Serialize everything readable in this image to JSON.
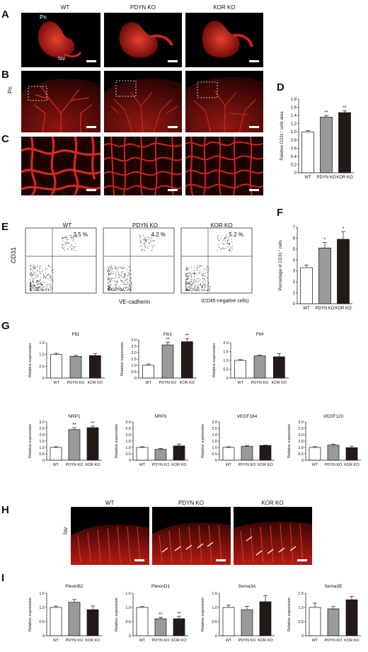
{
  "panels": {
    "A": "A",
    "B": "B",
    "C": "C",
    "D": "D",
    "E": "E",
    "F": "F",
    "G": "G",
    "H": "H",
    "I": "I"
  },
  "groups": [
    "WT",
    "PDYN KO",
    "KOR KO"
  ],
  "panel_a": {
    "pn": "Pn",
    "isv": "Isv"
  },
  "panel_b": {
    "side": "Pn"
  },
  "panel_e": {
    "pcts": [
      "3.5 %",
      "4.2 %",
      "5.2 %"
    ],
    "ylabel": "CD31",
    "xlabel": "VE-cadherin",
    "note": "(CD45-negative cells)"
  },
  "panel_h": {
    "side": "Isv"
  },
  "chart_data": [
    {
      "id": "D",
      "type": "bar",
      "categories": [
        "WT",
        "PDYN KO",
        "KOR KO"
      ],
      "values": [
        1.0,
        1.36,
        1.47
      ],
      "errors": [
        0.03,
        0.04,
        0.05
      ],
      "stars": [
        "",
        "**",
        "**"
      ],
      "ylabel": "Relative CD31⁺ cells area",
      "ylim": [
        0,
        1.8
      ],
      "yticks": [
        0,
        0.2,
        0.4,
        0.6,
        0.8,
        1.0,
        1.2,
        1.4,
        1.6,
        1.8
      ],
      "ytick_labels": [
        "0",
        "0.2",
        "0.4",
        "0.6",
        "0.8",
        "1.0",
        "1.2",
        "1.4",
        "1.6",
        "1.8"
      ],
      "title": ""
    },
    {
      "id": "F",
      "type": "bar",
      "categories": [
        "WT",
        "PDYN KO",
        "KOR KO"
      ],
      "values": [
        3.3,
        5.1,
        5.9
      ],
      "errors": [
        0.25,
        0.5,
        0.7
      ],
      "stars": [
        "",
        "*",
        "*"
      ],
      "ylabel": "Percentage of CD31⁺ cells",
      "ylim": [
        0,
        7
      ],
      "yticks": [
        0,
        1,
        2,
        3,
        4,
        5,
        6,
        7
      ],
      "ytick_labels": [
        "0",
        "1",
        "2",
        "3",
        "4",
        "5",
        "6",
        "7"
      ],
      "title": ""
    },
    {
      "id": "G1",
      "type": "bar",
      "title": "Flt1",
      "categories": [
        "WT",
        "PDYN KO",
        "KOR KO"
      ],
      "values": [
        1.0,
        0.92,
        0.95
      ],
      "errors": [
        0.05,
        0.04,
        0.08
      ],
      "stars": [
        "",
        "",
        ""
      ],
      "ylabel": "Relative expression",
      "ylim": [
        0,
        1.5
      ],
      "yticks": [
        0,
        0.5,
        1.0,
        1.5
      ],
      "ytick_labels": [
        "0",
        "0.5",
        "1.0",
        "1.5"
      ]
    },
    {
      "id": "G2",
      "type": "bar",
      "title": "Flk1",
      "categories": [
        "WT",
        "PDYN KO",
        "KOR KO"
      ],
      "values": [
        1.0,
        2.6,
        2.85
      ],
      "errors": [
        0.1,
        0.2,
        0.25
      ],
      "stars": [
        "",
        "**",
        "**"
      ],
      "ylabel": "Relative expression",
      "ylim": [
        0,
        3.0
      ],
      "yticks": [
        0,
        0.5,
        1.0,
        1.5,
        2.0,
        2.5,
        3.0
      ],
      "ytick_labels": [
        "0",
        "0.5",
        "1.0",
        "1.5",
        "2.0",
        "2.5",
        "3.0"
      ]
    },
    {
      "id": "G3",
      "type": "bar",
      "title": "Flt4",
      "categories": [
        "WT",
        "PDYN KO",
        "KOR KO"
      ],
      "values": [
        1.0,
        1.25,
        1.2
      ],
      "errors": [
        0.04,
        0.05,
        0.18
      ],
      "stars": [
        "",
        "",
        ""
      ],
      "ylabel": "Relative expression",
      "ylim": [
        0,
        2.0
      ],
      "yticks": [
        0,
        0.5,
        1.0,
        1.5,
        2.0
      ],
      "ytick_labels": [
        "0",
        "0.5",
        "1.0",
        "1.5",
        "2.0"
      ]
    },
    {
      "id": "G4",
      "type": "bar",
      "title": "NRP1",
      "categories": [
        "WT",
        "PDYN KO",
        "KOR KO"
      ],
      "values": [
        1.0,
        2.4,
        2.55
      ],
      "errors": [
        0.05,
        0.15,
        0.12
      ],
      "stars": [
        "",
        "**",
        "**"
      ],
      "ylabel": "Relative expression",
      "ylim": [
        0,
        3.0
      ],
      "yticks": [
        0,
        0.5,
        1.0,
        1.5,
        2.0,
        2.5,
        3.0
      ],
      "ytick_labels": [
        "0",
        "0.5",
        "1.0",
        "1.5",
        "2.0",
        "2.5",
        "3.0"
      ]
    },
    {
      "id": "G5",
      "type": "bar",
      "title": "NRP2",
      "categories": [
        "WT",
        "PDYN KO",
        "KOR KO"
      ],
      "values": [
        1.0,
        0.85,
        1.12
      ],
      "errors": [
        0.05,
        0.06,
        0.15
      ],
      "stars": [
        "",
        "",
        ""
      ],
      "ylabel": "Relative expression",
      "ylim": [
        0,
        3.0
      ],
      "yticks": [
        0,
        0.5,
        1.0,
        1.5,
        2.0,
        2.5,
        3.0
      ],
      "ytick_labels": [
        "0",
        "0.5",
        "1.0",
        "1.5",
        "2.0",
        "2.5",
        "3.0"
      ]
    },
    {
      "id": "G6",
      "type": "bar",
      "title": "VEGF164",
      "categories": [
        "WT",
        "PDYN KO",
        "KOR KO"
      ],
      "values": [
        1.0,
        1.08,
        1.15
      ],
      "errors": [
        0.05,
        0.07,
        0.03
      ],
      "stars": [
        "",
        "",
        ""
      ],
      "ylabel": "Relative expression",
      "ylim": [
        0,
        3.0
      ],
      "yticks": [
        0,
        0.5,
        1.0,
        1.5,
        2.0,
        2.5,
        3.0
      ],
      "ytick_labels": [
        "0",
        "0.5",
        "1.0",
        "1.5",
        "2.0",
        "2.5",
        "3.0"
      ]
    },
    {
      "id": "G7",
      "type": "bar",
      "title": "VEGF120",
      "categories": [
        "WT",
        "PDYN KO",
        "KOR KO"
      ],
      "values": [
        1.0,
        1.18,
        0.98
      ],
      "errors": [
        0.06,
        0.08,
        0.12
      ],
      "stars": [
        "",
        "",
        ""
      ],
      "ylabel": "Relative expression",
      "ylim": [
        0,
        3.0
      ],
      "yticks": [
        0,
        0.5,
        1.0,
        1.5,
        2.0,
        2.5,
        3.0
      ],
      "ytick_labels": [
        "0",
        "0.5",
        "1.0",
        "1.5",
        "2.0",
        "2.5",
        "3.0"
      ]
    },
    {
      "id": "I1",
      "type": "bar",
      "title": "PlexinB2",
      "categories": [
        "WT",
        "PDYN KO",
        "KOR KO"
      ],
      "values": [
        1.0,
        1.18,
        0.92
      ],
      "errors": [
        0.05,
        0.1,
        0.13
      ],
      "stars": [
        "",
        "",
        ""
      ],
      "ylabel": "Relative expression",
      "ylim": [
        0,
        1.5
      ],
      "yticks": [
        0,
        0.5,
        1.0,
        1.5
      ],
      "ytick_labels": [
        "0",
        "0.5",
        "1.0",
        "1.5"
      ]
    },
    {
      "id": "I2",
      "type": "bar",
      "title": "PlexinD1",
      "categories": [
        "WT",
        "PDYN KO",
        "KOR KO"
      ],
      "values": [
        1.0,
        0.6,
        0.6
      ],
      "errors": [
        0.03,
        0.05,
        0.08
      ],
      "stars": [
        "",
        "**",
        "**"
      ],
      "ylabel": "Relative expression",
      "ylim": [
        0,
        1.5
      ],
      "yticks": [
        0,
        0.5,
        1.0,
        1.5
      ],
      "ytick_labels": [
        "0",
        "0.5",
        "1.0",
        "1.5"
      ]
    },
    {
      "id": "I3",
      "type": "bar",
      "title": "Sema3A",
      "categories": [
        "WT",
        "PDYN KO",
        "KOR KO"
      ],
      "values": [
        1.0,
        0.92,
        1.2
      ],
      "errors": [
        0.08,
        0.12,
        0.22
      ],
      "stars": [
        "",
        "",
        ""
      ],
      "ylabel": "Relative expression",
      "ylim": [
        0,
        1.5
      ],
      "yticks": [
        0,
        0.5,
        1.0,
        1.5
      ],
      "ytick_labels": [
        "0",
        "0.5",
        "1.0",
        "1.5"
      ]
    },
    {
      "id": "I4",
      "type": "bar",
      "title": "Sema3E",
      "categories": [
        "WT",
        "PDYN KO",
        "KOR KO"
      ],
      "values": [
        1.0,
        0.95,
        1.27
      ],
      "errors": [
        0.15,
        0.08,
        0.12
      ],
      "stars": [
        "",
        "",
        ""
      ],
      "ylabel": "Relative expression",
      "ylim": [
        0,
        1.5
      ],
      "yticks": [
        0,
        0.5,
        1.0,
        1.5
      ],
      "ytick_labels": [
        "0",
        "0.5",
        "1.0",
        "1.5"
      ]
    }
  ],
  "colors": {
    "bar_fills": [
      "#ffffff",
      "#9a9a9a",
      "#231a18"
    ],
    "stain": "#d0201a"
  }
}
